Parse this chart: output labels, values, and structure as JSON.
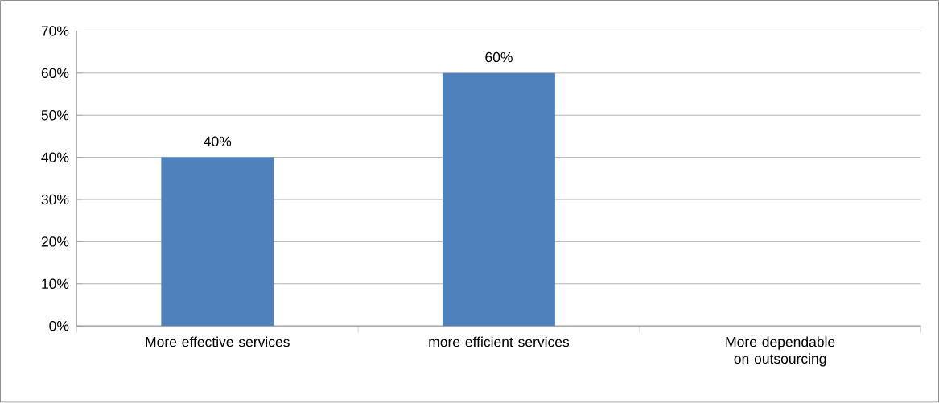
{
  "chart_data": {
    "type": "bar",
    "categories": [
      "More effective services",
      "more efficient services",
      "More dependable on outsourcing"
    ],
    "values": [
      40,
      60,
      0
    ],
    "color": "#4f81bd",
    "value_labels": [
      "40%",
      "60%",
      null
    ],
    "ylim": [
      0,
      70
    ],
    "yticks": [
      {
        "value": 0,
        "label": "0%"
      },
      {
        "value": 10,
        "label": "10%"
      },
      {
        "value": 20,
        "label": "20%"
      },
      {
        "value": 30,
        "label": "30%"
      },
      {
        "value": 40,
        "label": "40%"
      },
      {
        "value": 50,
        "label": "50%"
      },
      {
        "value": 60,
        "label": "60%"
      },
      {
        "value": 70,
        "label": "70%"
      }
    ],
    "grid": "y"
  }
}
